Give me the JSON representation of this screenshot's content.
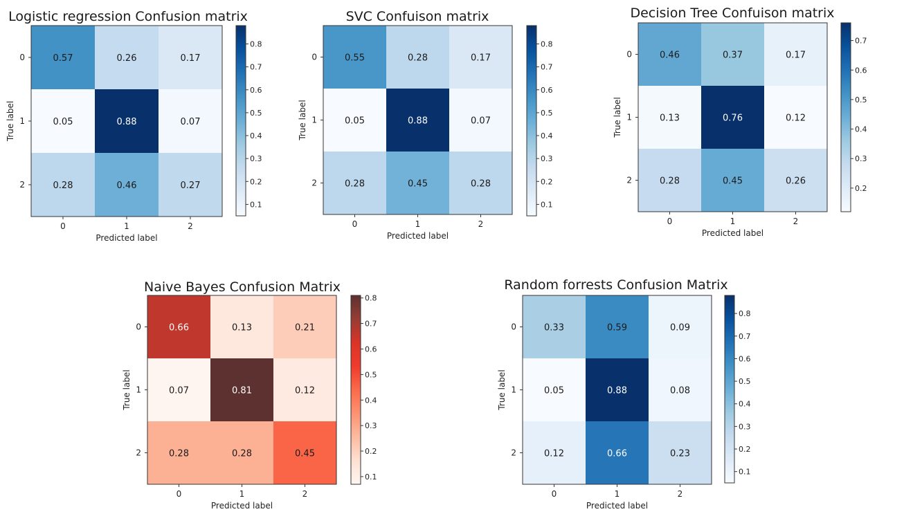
{
  "chart_data": [
    {
      "type": "heatmap",
      "title": "Logistic regression Confusion matrix",
      "xlabel": "Predicted label",
      "ylabel": "True label",
      "x_ticks": [
        "0",
        "1",
        "2"
      ],
      "y_ticks": [
        "0",
        "1",
        "2"
      ],
      "values": [
        [
          0.57,
          0.26,
          0.17
        ],
        [
          0.05,
          0.88,
          0.07
        ],
        [
          0.28,
          0.46,
          0.27
        ]
      ],
      "colormap": "Blues",
      "colorbar_range": [
        0.05,
        0.88
      ],
      "colorbar_ticks": [
        0.1,
        0.2,
        0.3,
        0.4,
        0.5,
        0.6,
        0.7,
        0.8
      ]
    },
    {
      "type": "heatmap",
      "title": "SVC Confuison matrix",
      "xlabel": "Predicted label",
      "ylabel": "True label",
      "x_ticks": [
        "0",
        "1",
        "2"
      ],
      "y_ticks": [
        "0",
        "1",
        "2"
      ],
      "values": [
        [
          0.55,
          0.28,
          0.17
        ],
        [
          0.05,
          0.88,
          0.07
        ],
        [
          0.28,
          0.45,
          0.28
        ]
      ],
      "colormap": "Blues",
      "colorbar_range": [
        0.05,
        0.88
      ],
      "colorbar_ticks": [
        0.1,
        0.2,
        0.3,
        0.4,
        0.5,
        0.6,
        0.7,
        0.8
      ]
    },
    {
      "type": "heatmap",
      "title": "Decision Tree Confuison matrix",
      "xlabel": "Predicted label",
      "ylabel": "True label",
      "x_ticks": [
        "0",
        "1",
        "2"
      ],
      "y_ticks": [
        "0",
        "1",
        "2"
      ],
      "values": [
        [
          0.46,
          0.37,
          0.17
        ],
        [
          0.13,
          0.76,
          0.12
        ],
        [
          0.28,
          0.45,
          0.26
        ]
      ],
      "colormap": "Blues",
      "colorbar_range": [
        0.12,
        0.76
      ],
      "colorbar_ticks": [
        0.2,
        0.3,
        0.4,
        0.5,
        0.6,
        0.7
      ]
    },
    {
      "type": "heatmap",
      "title": "Naive Bayes Confusion Matrix",
      "xlabel": "Predicted label",
      "ylabel": "True label",
      "x_ticks": [
        "0",
        "1",
        "2"
      ],
      "y_ticks": [
        "0",
        "1",
        "2"
      ],
      "values": [
        [
          0.66,
          0.13,
          0.21
        ],
        [
          0.07,
          0.81,
          0.12
        ],
        [
          0.28,
          0.28,
          0.45
        ]
      ],
      "colormap": "Reds",
      "top_color": "#5c3130",
      "colorbar_range": [
        0.07,
        0.81
      ],
      "colorbar_ticks": [
        0.1,
        0.2,
        0.3,
        0.4,
        0.5,
        0.6,
        0.7,
        0.8
      ]
    },
    {
      "type": "heatmap",
      "title": "Random forrests Confusion Matrix",
      "xlabel": "Predicted label",
      "ylabel": "True label",
      "x_ticks": [
        "0",
        "1",
        "2"
      ],
      "y_ticks": [
        "0",
        "1",
        "2"
      ],
      "values": [
        [
          0.33,
          0.59,
          0.09
        ],
        [
          0.05,
          0.88,
          0.08
        ],
        [
          0.12,
          0.66,
          0.23
        ]
      ],
      "colormap": "Blues",
      "colorbar_range": [
        0.05,
        0.88
      ],
      "colorbar_ticks": [
        0.1,
        0.2,
        0.3,
        0.4,
        0.5,
        0.6,
        0.7,
        0.8
      ]
    }
  ]
}
